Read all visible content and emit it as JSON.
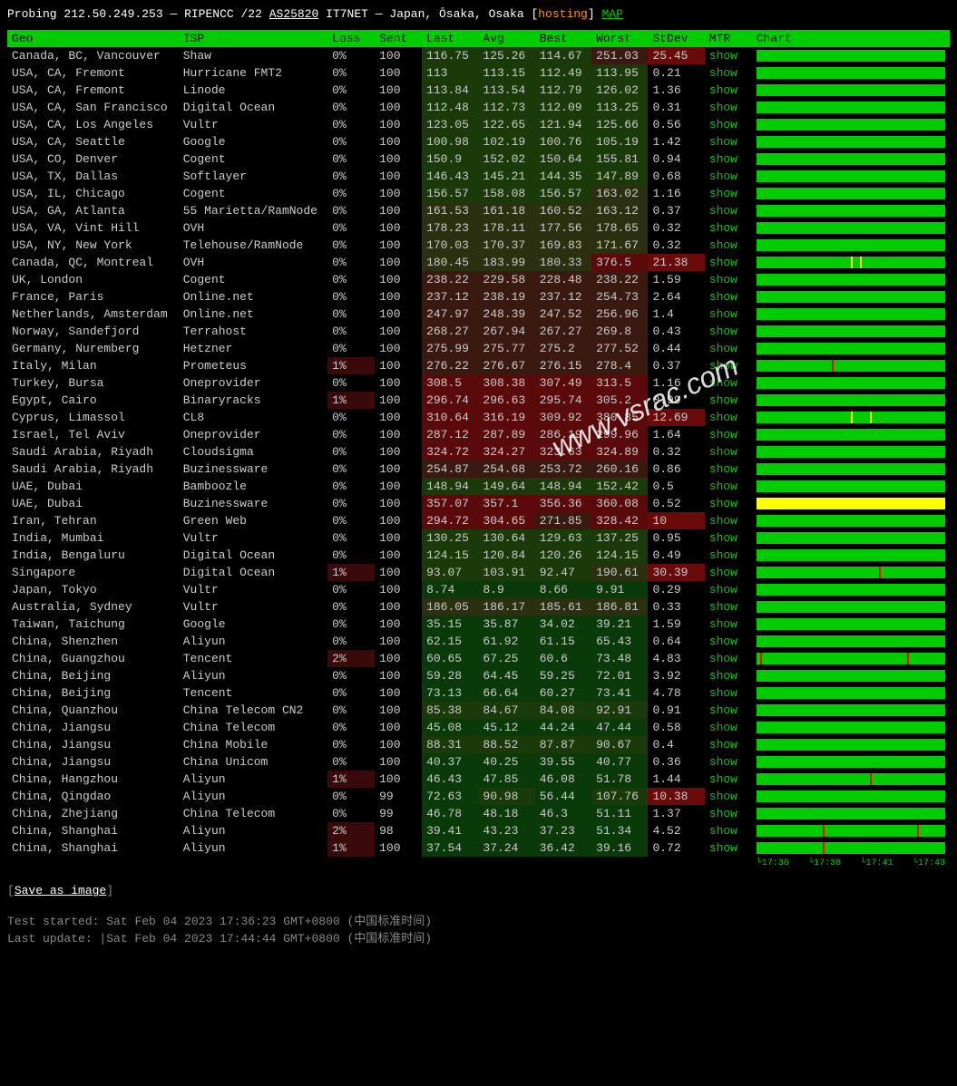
{
  "header": {
    "prefix": "Probing",
    "ip": "212.50.249.253",
    "registry": "RIPENCC /22",
    "as": "AS25820",
    "org": "IT7NET",
    "loc": "Japan, Ōsaka, Osaka",
    "tag": "hosting",
    "map": "MAP"
  },
  "columns": [
    "Geo",
    "ISP",
    "Loss",
    "Sent",
    "Last",
    "Avg",
    "Best",
    "Worst",
    "StDev",
    "MTR",
    "Chart"
  ],
  "colors": {
    "heat_low": "#0a3a0a",
    "heat_mid": "#2a3a0a",
    "heat_high": "#4a0a0a",
    "heat_vhigh": "#6a0a0a",
    "stdev_high_bg": "#6a0a0a"
  },
  "rows": [
    {
      "geo": "Canada, BC, Vancouver",
      "isp": "Shaw",
      "loss": "0%",
      "sent": "100",
      "last": "116.75",
      "avg": "125.26",
      "best": "114.67",
      "worst": "251.03",
      "stdev": "25.45",
      "heat": [
        1,
        1,
        1,
        3
      ],
      "stdev_hi": 1,
      "chart": {
        "color": "green",
        "spikes": []
      }
    },
    {
      "geo": "USA, CA, Fremont",
      "isp": "Hurricane FMT2",
      "loss": "0%",
      "sent": "100",
      "last": "113",
      "avg": "113.15",
      "best": "112.49",
      "worst": "113.95",
      "stdev": "0.21",
      "heat": [
        1,
        1,
        1,
        1
      ],
      "chart": {
        "color": "green"
      }
    },
    {
      "geo": "USA, CA, Fremont",
      "isp": "Linode",
      "loss": "0%",
      "sent": "100",
      "last": "113.84",
      "avg": "113.54",
      "best": "112.79",
      "worst": "126.02",
      "stdev": "1.36",
      "heat": [
        1,
        1,
        1,
        1
      ],
      "chart": {
        "color": "green"
      }
    },
    {
      "geo": "USA, CA, San Francisco",
      "isp": "Digital Ocean",
      "loss": "0%",
      "sent": "100",
      "last": "112.48",
      "avg": "112.73",
      "best": "112.09",
      "worst": "113.25",
      "stdev": "0.31",
      "heat": [
        1,
        1,
        1,
        1
      ],
      "chart": {
        "color": "green"
      }
    },
    {
      "geo": "USA, CA, Los Angeles",
      "isp": "Vultr",
      "loss": "0%",
      "sent": "100",
      "last": "123.05",
      "avg": "122.65",
      "best": "121.94",
      "worst": "125.66",
      "stdev": "0.56",
      "heat": [
        1,
        1,
        1,
        1
      ],
      "chart": {
        "color": "green"
      }
    },
    {
      "geo": "USA, CA, Seattle",
      "isp": "Google",
      "loss": "0%",
      "sent": "100",
      "last": "100.98",
      "avg": "102.19",
      "best": "100.76",
      "worst": "105.19",
      "stdev": "1.42",
      "heat": [
        1,
        1,
        1,
        1
      ],
      "chart": {
        "color": "green"
      }
    },
    {
      "geo": "USA, CO, Denver",
      "isp": "Cogent",
      "loss": "0%",
      "sent": "100",
      "last": "150.9",
      "avg": "152.02",
      "best": "150.64",
      "worst": "155.81",
      "stdev": "0.94",
      "heat": [
        1,
        1,
        1,
        1
      ],
      "chart": {
        "color": "green"
      }
    },
    {
      "geo": "USA, TX, Dallas",
      "isp": "Softlayer",
      "loss": "0%",
      "sent": "100",
      "last": "146.43",
      "avg": "145.21",
      "best": "144.35",
      "worst": "147.89",
      "stdev": "0.68",
      "heat": [
        1,
        1,
        1,
        1
      ],
      "chart": {
        "color": "green"
      }
    },
    {
      "geo": "USA, IL, Chicago",
      "isp": "Cogent",
      "loss": "0%",
      "sent": "100",
      "last": "156.57",
      "avg": "158.08",
      "best": "156.57",
      "worst": "163.02",
      "stdev": "1.16",
      "heat": [
        1,
        1,
        1,
        2
      ],
      "chart": {
        "color": "green"
      }
    },
    {
      "geo": "USA, GA, Atlanta",
      "isp": "55 Marietta/RamNode",
      "loss": "0%",
      "sent": "100",
      "last": "161.53",
      "avg": "161.18",
      "best": "160.52",
      "worst": "163.12",
      "stdev": "0.37",
      "heat": [
        2,
        2,
        2,
        2
      ],
      "chart": {
        "color": "green"
      }
    },
    {
      "geo": "USA, VA, Vint Hill",
      "isp": "OVH",
      "loss": "0%",
      "sent": "100",
      "last": "178.23",
      "avg": "178.11",
      "best": "177.56",
      "worst": "178.65",
      "stdev": "0.32",
      "heat": [
        2,
        2,
        2,
        2
      ],
      "chart": {
        "color": "green"
      }
    },
    {
      "geo": "USA, NY, New York",
      "isp": "Telehouse/RamNode",
      "loss": "0%",
      "sent": "100",
      "last": "170.03",
      "avg": "170.37",
      "best": "169.83",
      "worst": "171.67",
      "stdev": "0.32",
      "heat": [
        2,
        2,
        2,
        2
      ],
      "chart": {
        "color": "green"
      }
    },
    {
      "geo": "Canada, QC, Montreal",
      "isp": "OVH",
      "loss": "0%",
      "sent": "100",
      "last": "180.45",
      "avg": "183.99",
      "best": "180.33",
      "worst": "376.5",
      "stdev": "21.38",
      "heat": [
        2,
        2,
        2,
        4
      ],
      "stdev_hi": 1,
      "chart": {
        "color": "green",
        "spikes": [
          {
            "c": "yellow",
            "p": 50
          },
          {
            "c": "yellow",
            "p": 55
          }
        ]
      }
    },
    {
      "geo": "UK, London",
      "isp": "Cogent",
      "loss": "0%",
      "sent": "100",
      "last": "238.22",
      "avg": "229.58",
      "best": "228.48",
      "worst": "238.22",
      "stdev": "1.59",
      "heat": [
        3,
        3,
        3,
        3
      ],
      "chart": {
        "color": "green"
      }
    },
    {
      "geo": "France, Paris",
      "isp": "Online.net",
      "loss": "0%",
      "sent": "100",
      "last": "237.12",
      "avg": "238.19",
      "best": "237.12",
      "worst": "254.73",
      "stdev": "2.64",
      "heat": [
        3,
        3,
        3,
        3
      ],
      "chart": {
        "color": "green"
      }
    },
    {
      "geo": "Netherlands, Amsterdam",
      "isp": "Online.net",
      "loss": "0%",
      "sent": "100",
      "last": "247.97",
      "avg": "248.39",
      "best": "247.52",
      "worst": "256.96",
      "stdev": "1.4",
      "heat": [
        3,
        3,
        3,
        3
      ],
      "chart": {
        "color": "green"
      }
    },
    {
      "geo": "Norway, Sandefjord",
      "isp": "Terrahost",
      "loss": "0%",
      "sent": "100",
      "last": "268.27",
      "avg": "267.94",
      "best": "267.27",
      "worst": "269.8",
      "stdev": "0.43",
      "heat": [
        3,
        3,
        3,
        3
      ],
      "chart": {
        "color": "green"
      }
    },
    {
      "geo": "Germany, Nuremberg",
      "isp": "Hetzner",
      "loss": "0%",
      "sent": "100",
      "last": "275.99",
      "avg": "275.77",
      "best": "275.2",
      "worst": "277.52",
      "stdev": "0.44",
      "heat": [
        3,
        3,
        3,
        3
      ],
      "chart": {
        "color": "green"
      }
    },
    {
      "geo": "Italy, Milan",
      "isp": "Prometeus",
      "loss": "1%",
      "sent": "100",
      "last": "276.22",
      "avg": "276.67",
      "best": "276.15",
      "worst": "278.4",
      "stdev": "0.37",
      "heat": [
        3,
        3,
        3,
        3
      ],
      "loss_hi": 1,
      "chart": {
        "color": "green",
        "spikes": [
          {
            "c": "red",
            "p": 40
          }
        ]
      }
    },
    {
      "geo": "Turkey, Bursa",
      "isp": "Oneprovider",
      "loss": "0%",
      "sent": "100",
      "last": "308.5",
      "avg": "308.38",
      "best": "307.49",
      "worst": "313.5",
      "stdev": "1.16",
      "heat": [
        4,
        4,
        4,
        4
      ],
      "chart": {
        "color": "green"
      }
    },
    {
      "geo": "Egypt, Cairo",
      "isp": "Binaryracks",
      "loss": "1%",
      "sent": "100",
      "last": "296.74",
      "avg": "296.63",
      "best": "295.74",
      "worst": "305.2",
      "stdev": "0.99",
      "heat": [
        4,
        4,
        4,
        4
      ],
      "loss_hi": 1,
      "chart": {
        "color": "green"
      }
    },
    {
      "geo": "Cyprus, Limassol",
      "isp": "CL8",
      "loss": "0%",
      "sent": "100",
      "last": "310.64",
      "avg": "316.19",
      "best": "309.92",
      "worst": "380.85",
      "stdev": "12.69",
      "heat": [
        4,
        4,
        4,
        4
      ],
      "stdev_hi": 1,
      "chart": {
        "color": "green",
        "spikes": [
          {
            "c": "yellow",
            "p": 50
          },
          {
            "c": "yellow",
            "p": 60
          }
        ]
      }
    },
    {
      "geo": "Israel, Tel Aviv",
      "isp": "Oneprovider",
      "loss": "0%",
      "sent": "100",
      "last": "287.12",
      "avg": "287.89",
      "best": "286.19",
      "worst": "299.96",
      "stdev": "1.64",
      "heat": [
        4,
        4,
        4,
        4
      ],
      "chart": {
        "color": "green"
      }
    },
    {
      "geo": "Saudi Arabia, Riyadh",
      "isp": "Cloudsigma",
      "loss": "0%",
      "sent": "100",
      "last": "324.72",
      "avg": "324.27",
      "best": "323.63",
      "worst": "324.89",
      "stdev": "0.32",
      "heat": [
        4,
        4,
        4,
        4
      ],
      "chart": {
        "color": "green"
      }
    },
    {
      "geo": "Saudi Arabia, Riyadh",
      "isp": "Buzinessware",
      "loss": "0%",
      "sent": "100",
      "last": "254.87",
      "avg": "254.68",
      "best": "253.72",
      "worst": "260.16",
      "stdev": "0.86",
      "heat": [
        3,
        3,
        3,
        3
      ],
      "chart": {
        "color": "green"
      }
    },
    {
      "geo": "UAE, Dubai",
      "isp": "Bamboozle",
      "loss": "0%",
      "sent": "100",
      "last": "148.94",
      "avg": "149.64",
      "best": "148.94",
      "worst": "152.42",
      "stdev": "0.5",
      "heat": [
        1,
        1,
        1,
        1
      ],
      "chart": {
        "color": "green"
      }
    },
    {
      "geo": "UAE, Dubai",
      "isp": "Buzinessware",
      "loss": "0%",
      "sent": "100",
      "last": "357.07",
      "avg": "357.1",
      "best": "356.36",
      "worst": "360.08",
      "stdev": "0.52",
      "heat": [
        4,
        4,
        4,
        4
      ],
      "chart": {
        "color": "yellow"
      }
    },
    {
      "geo": "Iran, Tehran",
      "isp": "Green Web",
      "loss": "0%",
      "sent": "100",
      "last": "294.72",
      "avg": "304.65",
      "best": "271.85",
      "worst": "328.42",
      "stdev": "10",
      "heat": [
        4,
        4,
        3,
        4
      ],
      "stdev_hi": 1,
      "chart": {
        "color": "green"
      }
    },
    {
      "geo": "India, Mumbai",
      "isp": "Vultr",
      "loss": "0%",
      "sent": "100",
      "last": "130.25",
      "avg": "130.64",
      "best": "129.63",
      "worst": "137.25",
      "stdev": "0.95",
      "heat": [
        1,
        1,
        1,
        1
      ],
      "chart": {
        "color": "green"
      }
    },
    {
      "geo": "India, Bengaluru",
      "isp": "Digital Ocean",
      "loss": "0%",
      "sent": "100",
      "last": "124.15",
      "avg": "120.84",
      "best": "120.26",
      "worst": "124.15",
      "stdev": "0.49",
      "heat": [
        1,
        1,
        1,
        1
      ],
      "chart": {
        "color": "green"
      }
    },
    {
      "geo": "Singapore",
      "isp": "Digital Ocean",
      "loss": "1%",
      "sent": "100",
      "last": "93.07",
      "avg": "103.91",
      "best": "92.47",
      "worst": "190.61",
      "stdev": "30.39",
      "heat": [
        1,
        1,
        1,
        2
      ],
      "stdev_hi": 1,
      "loss_hi": 1,
      "chart": {
        "color": "green",
        "spikes": [
          {
            "c": "red",
            "p": 65
          }
        ]
      }
    },
    {
      "geo": "Japan, Tokyo",
      "isp": "Vultr",
      "loss": "0%",
      "sent": "100",
      "last": "8.74",
      "avg": "8.9",
      "best": "8.66",
      "worst": "9.91",
      "stdev": "0.29",
      "heat": [
        0,
        0,
        0,
        0
      ],
      "chart": {
        "color": "green"
      }
    },
    {
      "geo": "Australia, Sydney",
      "isp": "Vultr",
      "loss": "0%",
      "sent": "100",
      "last": "186.05",
      "avg": "186.17",
      "best": "185.61",
      "worst": "186.81",
      "stdev": "0.33",
      "heat": [
        2,
        2,
        2,
        2
      ],
      "chart": {
        "color": "green"
      }
    },
    {
      "geo": "Taiwan, Taichung",
      "isp": "Google",
      "loss": "0%",
      "sent": "100",
      "last": "35.15",
      "avg": "35.87",
      "best": "34.02",
      "worst": "39.21",
      "stdev": "1.59",
      "heat": [
        0,
        0,
        0,
        0
      ],
      "chart": {
        "color": "green"
      }
    },
    {
      "geo": "China, Shenzhen",
      "isp": "Aliyun",
      "loss": "0%",
      "sent": "100",
      "last": "62.15",
      "avg": "61.92",
      "best": "61.15",
      "worst": "65.43",
      "stdev": "0.64",
      "heat": [
        0,
        0,
        0,
        0
      ],
      "chart": {
        "color": "green"
      }
    },
    {
      "geo": "China, Guangzhou",
      "isp": "Tencent",
      "loss": "2%",
      "sent": "100",
      "last": "60.65",
      "avg": "67.25",
      "best": "60.6",
      "worst": "73.48",
      "stdev": "4.83",
      "heat": [
        0,
        0,
        0,
        0
      ],
      "loss_hi": 1,
      "chart": {
        "color": "green",
        "spikes": [
          {
            "c": "red",
            "p": 2
          },
          {
            "c": "red",
            "p": 80
          }
        ]
      }
    },
    {
      "geo": "China, Beijing",
      "isp": "Aliyun",
      "loss": "0%",
      "sent": "100",
      "last": "59.28",
      "avg": "64.45",
      "best": "59.25",
      "worst": "72.01",
      "stdev": "3.92",
      "heat": [
        0,
        0,
        0,
        0
      ],
      "chart": {
        "color": "green"
      }
    },
    {
      "geo": "China, Beijing",
      "isp": "Tencent",
      "loss": "0%",
      "sent": "100",
      "last": "73.13",
      "avg": "66.64",
      "best": "60.27",
      "worst": "73.41",
      "stdev": "4.78",
      "heat": [
        0,
        0,
        0,
        0
      ],
      "chart": {
        "color": "green"
      }
    },
    {
      "geo": "China, Quanzhou",
      "isp": "China Telecom CN2",
      "loss": "0%",
      "sent": "100",
      "last": "85.38",
      "avg": "84.67",
      "best": "84.08",
      "worst": "92.91",
      "stdev": "0.91",
      "heat": [
        1,
        1,
        1,
        1
      ],
      "chart": {
        "color": "green"
      }
    },
    {
      "geo": "China, Jiangsu",
      "isp": "China Telecom",
      "loss": "0%",
      "sent": "100",
      "last": "45.08",
      "avg": "45.12",
      "best": "44.24",
      "worst": "47.44",
      "stdev": "0.58",
      "heat": [
        0,
        0,
        0,
        0
      ],
      "chart": {
        "color": "green"
      }
    },
    {
      "geo": "China, Jiangsu",
      "isp": "China Mobile",
      "loss": "0%",
      "sent": "100",
      "last": "88.31",
      "avg": "88.52",
      "best": "87.87",
      "worst": "90.67",
      "stdev": "0.4",
      "heat": [
        1,
        1,
        1,
        1
      ],
      "chart": {
        "color": "green"
      }
    },
    {
      "geo": "China, Jiangsu",
      "isp": "China Unicom",
      "loss": "0%",
      "sent": "100",
      "last": "40.37",
      "avg": "40.25",
      "best": "39.55",
      "worst": "40.77",
      "stdev": "0.36",
      "heat": [
        0,
        0,
        0,
        0
      ],
      "chart": {
        "color": "green"
      }
    },
    {
      "geo": "China, Hangzhou",
      "isp": "Aliyun",
      "loss": "1%",
      "sent": "100",
      "last": "46.43",
      "avg": "47.85",
      "best": "46.08",
      "worst": "51.78",
      "stdev": "1.44",
      "heat": [
        0,
        0,
        0,
        0
      ],
      "loss_hi": 1,
      "chart": {
        "color": "green",
        "spikes": [
          {
            "c": "red",
            "p": 60
          }
        ]
      }
    },
    {
      "geo": "China, Qingdao",
      "isp": "Aliyun",
      "loss": "0%",
      "sent": "99",
      "last": "72.63",
      "avg": "90.98",
      "best": "56.44",
      "worst": "107.76",
      "stdev": "10.38",
      "heat": [
        0,
        1,
        0,
        1
      ],
      "stdev_hi": 1,
      "chart": {
        "color": "green"
      }
    },
    {
      "geo": "China, Zhejiang",
      "isp": "China Telecom",
      "loss": "0%",
      "sent": "99",
      "last": "46.78",
      "avg": "48.18",
      "best": "46.3",
      "worst": "51.11",
      "stdev": "1.37",
      "heat": [
        0,
        0,
        0,
        0
      ],
      "chart": {
        "color": "green"
      }
    },
    {
      "geo": "China, Shanghai",
      "isp": "Aliyun",
      "loss": "2%",
      "sent": "98",
      "last": "39.41",
      "avg": "43.23",
      "best": "37.23",
      "worst": "51.34",
      "stdev": "4.52",
      "heat": [
        0,
        0,
        0,
        0
      ],
      "loss_hi": 1,
      "chart": {
        "color": "green",
        "spikes": [
          {
            "c": "red",
            "p": 35
          },
          {
            "c": "red",
            "p": 85
          }
        ]
      }
    },
    {
      "geo": "China, Shanghai",
      "isp": "Aliyun",
      "loss": "1%",
      "sent": "100",
      "last": "37.54",
      "avg": "37.24",
      "best": "36.42",
      "worst": "39.16",
      "stdev": "0.72",
      "heat": [
        0,
        0,
        0,
        0
      ],
      "loss_hi": 1,
      "chart": {
        "color": "green",
        "spikes": [
          {
            "c": "red",
            "p": 35
          }
        ]
      }
    }
  ],
  "ticks": [
    "17:36",
    "17:38",
    "17:41",
    "17:43"
  ],
  "footer": {
    "save": "Save as image",
    "started_label": "Test started:",
    "started": "Sat Feb 04 2023 17:36:23 GMT+0800 (中国标准时间)",
    "updated_label": "Last update: ",
    "updated": "|Sat Feb 04 2023 17:44:44 GMT+0800 (中国标准时间)"
  },
  "watermark": "www.vsrac.com"
}
